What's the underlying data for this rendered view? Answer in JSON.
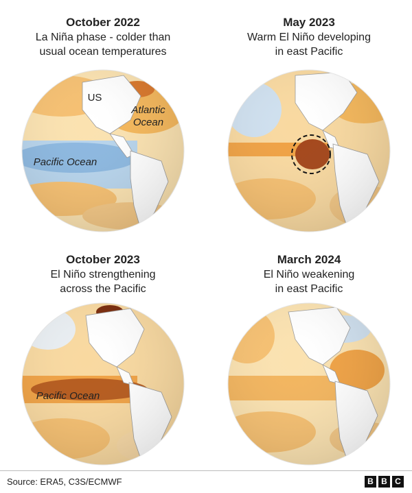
{
  "panels": [
    {
      "title": "October 2022",
      "subtitle_line1": "La Niña phase - colder than",
      "subtitle_line2": "usual ocean temperatures",
      "labels": {
        "us": "US",
        "atlantic_line1": "Atlantic",
        "atlantic_line2": "Ocean",
        "pacific": "Pacific Ocean"
      }
    },
    {
      "title": "May 2023",
      "subtitle_line1": "Warm El Niño developing",
      "subtitle_line2": "in east Pacific",
      "labels": {}
    },
    {
      "title": "October 2023",
      "subtitle_line1": "El Niño strengthening",
      "subtitle_line2": "across the Pacific",
      "labels": {
        "pacific": "Pacific Ocean"
      }
    },
    {
      "title": "March 2024",
      "subtitle_line1": "El Niño weakening",
      "subtitle_line2": "in east Pacific",
      "labels": {}
    }
  ],
  "source": "Source: ERA5, C3S/ECMWF",
  "logo": {
    "letters": [
      "B",
      "B",
      "C"
    ]
  },
  "colors": {
    "cold": "#9cc3e4",
    "cold_deep": "#6fa7d6",
    "warm": "#f5b75a",
    "warm_light": "#fbe2b0",
    "hot": "#7a2a0a",
    "land": "#ffffff"
  }
}
